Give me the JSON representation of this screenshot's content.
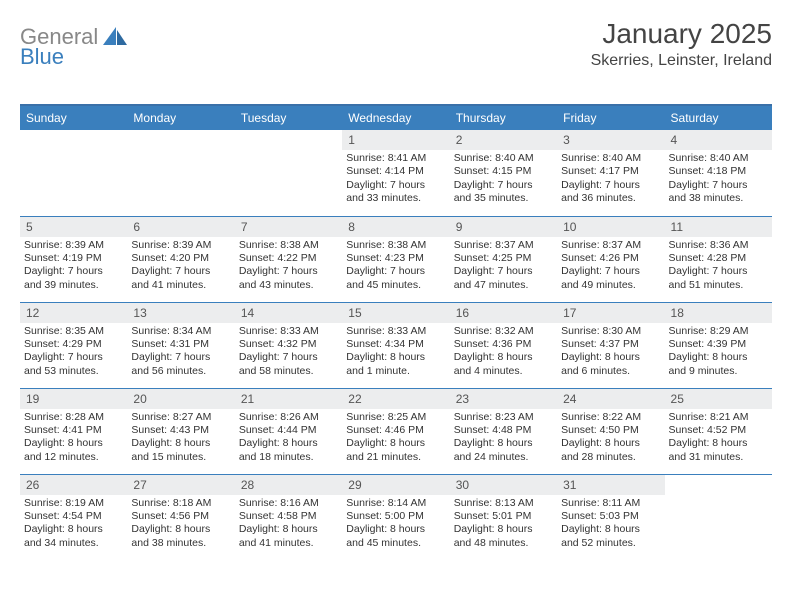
{
  "brand": {
    "part1": "General",
    "part2": "Blue"
  },
  "title": "January 2025",
  "location": "Skerries, Leinster, Ireland",
  "colors": {
    "header_bg": "#3a7fbd",
    "header_border_top": "#3a70a8",
    "daynum_bg": "#ecedee",
    "cell_border": "#3a7fbd",
    "text": "#333333",
    "logo_grey": "#888888",
    "logo_blue": "#3a7fbd"
  },
  "weekdays": [
    "Sunday",
    "Monday",
    "Tuesday",
    "Wednesday",
    "Thursday",
    "Friday",
    "Saturday"
  ],
  "weeks": [
    [
      {
        "empty": true
      },
      {
        "empty": true
      },
      {
        "empty": true
      },
      {
        "n": "1",
        "sunrise": "8:41 AM",
        "sunset": "4:14 PM",
        "daylight": "7 hours and 33 minutes."
      },
      {
        "n": "2",
        "sunrise": "8:40 AM",
        "sunset": "4:15 PM",
        "daylight": "7 hours and 35 minutes."
      },
      {
        "n": "3",
        "sunrise": "8:40 AM",
        "sunset": "4:17 PM",
        "daylight": "7 hours and 36 minutes."
      },
      {
        "n": "4",
        "sunrise": "8:40 AM",
        "sunset": "4:18 PM",
        "daylight": "7 hours and 38 minutes."
      }
    ],
    [
      {
        "n": "5",
        "sunrise": "8:39 AM",
        "sunset": "4:19 PM",
        "daylight": "7 hours and 39 minutes."
      },
      {
        "n": "6",
        "sunrise": "8:39 AM",
        "sunset": "4:20 PM",
        "daylight": "7 hours and 41 minutes."
      },
      {
        "n": "7",
        "sunrise": "8:38 AM",
        "sunset": "4:22 PM",
        "daylight": "7 hours and 43 minutes."
      },
      {
        "n": "8",
        "sunrise": "8:38 AM",
        "sunset": "4:23 PM",
        "daylight": "7 hours and 45 minutes."
      },
      {
        "n": "9",
        "sunrise": "8:37 AM",
        "sunset": "4:25 PM",
        "daylight": "7 hours and 47 minutes."
      },
      {
        "n": "10",
        "sunrise": "8:37 AM",
        "sunset": "4:26 PM",
        "daylight": "7 hours and 49 minutes."
      },
      {
        "n": "11",
        "sunrise": "8:36 AM",
        "sunset": "4:28 PM",
        "daylight": "7 hours and 51 minutes."
      }
    ],
    [
      {
        "n": "12",
        "sunrise": "8:35 AM",
        "sunset": "4:29 PM",
        "daylight": "7 hours and 53 minutes."
      },
      {
        "n": "13",
        "sunrise": "8:34 AM",
        "sunset": "4:31 PM",
        "daylight": "7 hours and 56 minutes."
      },
      {
        "n": "14",
        "sunrise": "8:33 AM",
        "sunset": "4:32 PM",
        "daylight": "7 hours and 58 minutes."
      },
      {
        "n": "15",
        "sunrise": "8:33 AM",
        "sunset": "4:34 PM",
        "daylight": "8 hours and 1 minute."
      },
      {
        "n": "16",
        "sunrise": "8:32 AM",
        "sunset": "4:36 PM",
        "daylight": "8 hours and 4 minutes."
      },
      {
        "n": "17",
        "sunrise": "8:30 AM",
        "sunset": "4:37 PM",
        "daylight": "8 hours and 6 minutes."
      },
      {
        "n": "18",
        "sunrise": "8:29 AM",
        "sunset": "4:39 PM",
        "daylight": "8 hours and 9 minutes."
      }
    ],
    [
      {
        "n": "19",
        "sunrise": "8:28 AM",
        "sunset": "4:41 PM",
        "daylight": "8 hours and 12 minutes."
      },
      {
        "n": "20",
        "sunrise": "8:27 AM",
        "sunset": "4:43 PM",
        "daylight": "8 hours and 15 minutes."
      },
      {
        "n": "21",
        "sunrise": "8:26 AM",
        "sunset": "4:44 PM",
        "daylight": "8 hours and 18 minutes."
      },
      {
        "n": "22",
        "sunrise": "8:25 AM",
        "sunset": "4:46 PM",
        "daylight": "8 hours and 21 minutes."
      },
      {
        "n": "23",
        "sunrise": "8:23 AM",
        "sunset": "4:48 PM",
        "daylight": "8 hours and 24 minutes."
      },
      {
        "n": "24",
        "sunrise": "8:22 AM",
        "sunset": "4:50 PM",
        "daylight": "8 hours and 28 minutes."
      },
      {
        "n": "25",
        "sunrise": "8:21 AM",
        "sunset": "4:52 PM",
        "daylight": "8 hours and 31 minutes."
      }
    ],
    [
      {
        "n": "26",
        "sunrise": "8:19 AM",
        "sunset": "4:54 PM",
        "daylight": "8 hours and 34 minutes."
      },
      {
        "n": "27",
        "sunrise": "8:18 AM",
        "sunset": "4:56 PM",
        "daylight": "8 hours and 38 minutes."
      },
      {
        "n": "28",
        "sunrise": "8:16 AM",
        "sunset": "4:58 PM",
        "daylight": "8 hours and 41 minutes."
      },
      {
        "n": "29",
        "sunrise": "8:14 AM",
        "sunset": "5:00 PM",
        "daylight": "8 hours and 45 minutes."
      },
      {
        "n": "30",
        "sunrise": "8:13 AM",
        "sunset": "5:01 PM",
        "daylight": "8 hours and 48 minutes."
      },
      {
        "n": "31",
        "sunrise": "8:11 AM",
        "sunset": "5:03 PM",
        "daylight": "8 hours and 52 minutes."
      },
      {
        "empty": true
      }
    ]
  ]
}
